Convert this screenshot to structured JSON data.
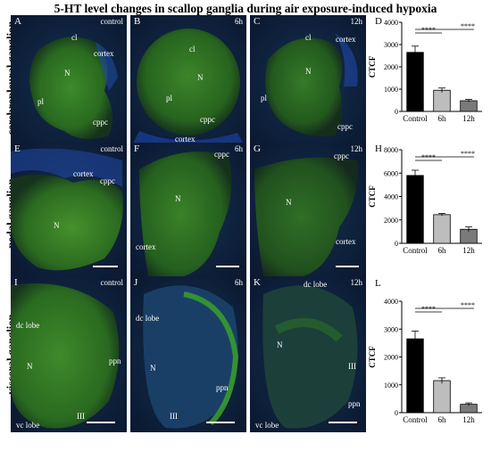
{
  "title": "5-HT level changes in scallop ganglia during air exposure-induced hypoxia",
  "row_labels": [
    "cerebropleural ganglion",
    "pedal ganglion",
    "visceral ganglion"
  ],
  "panels": [
    {
      "letter": "A",
      "time": "control",
      "labels": [
        "cl",
        "N",
        "pl",
        "cppc",
        "cortex"
      ]
    },
    {
      "letter": "B",
      "time": "6h",
      "labels": [
        "cl",
        "N",
        "pl",
        "cppc",
        "cortex"
      ]
    },
    {
      "letter": "C",
      "time": "12h",
      "labels": [
        "cl",
        "N",
        "pl",
        "cortex",
        "cppc"
      ]
    },
    {
      "letter": "E",
      "time": "control",
      "labels": [
        "cortex",
        "cppc",
        "N"
      ]
    },
    {
      "letter": "F",
      "time": "6h",
      "labels": [
        "cppc",
        "N",
        "cortex"
      ]
    },
    {
      "letter": "G",
      "time": "12h",
      "labels": [
        "cppc",
        "N",
        "cortex"
      ]
    },
    {
      "letter": "I",
      "time": "control",
      "labels": [
        "dc lobe",
        "N",
        "ppn",
        "III",
        "vc lobe"
      ]
    },
    {
      "letter": "J",
      "time": "6h",
      "labels": [
        "dc lobe",
        "N",
        "ppn",
        "III"
      ]
    },
    {
      "letter": "K",
      "time": "12h",
      "labels": [
        "dc lobe",
        "N",
        "III",
        "ppn",
        "vc lobe"
      ]
    }
  ],
  "chart_data": [
    {
      "letter": "D",
      "type": "bar",
      "categories": [
        "Control",
        "6h",
        "12h"
      ],
      "values": [
        2650,
        950,
        480
      ],
      "errors": [
        280,
        100,
        60
      ],
      "ylabel": "CTCF",
      "ylim": [
        0,
        4000
      ],
      "yticks": [
        0,
        1000,
        2000,
        3000,
        4000
      ],
      "significance": [
        "****",
        "****"
      ],
      "bar_colors": [
        "#000000",
        "#bdbdbd",
        "#7a7a7a"
      ]
    },
    {
      "letter": "H",
      "type": "bar",
      "categories": [
        "Control",
        "6h",
        "12h"
      ],
      "values": [
        5800,
        2450,
        1200
      ],
      "errors": [
        450,
        100,
        200
      ],
      "ylabel": "CTCF",
      "ylim": [
        0,
        8000
      ],
      "yticks": [
        0,
        2000,
        4000,
        6000,
        8000
      ],
      "significance": [
        "****",
        "****"
      ],
      "bar_colors": [
        "#000000",
        "#bdbdbd",
        "#7a7a7a"
      ]
    },
    {
      "letter": "L",
      "type": "bar",
      "categories": [
        "Control",
        "6h",
        "12h"
      ],
      "values": [
        2650,
        1150,
        300
      ],
      "errors": [
        280,
        100,
        50
      ],
      "ylabel": "CTCF",
      "ylim": [
        0,
        4000
      ],
      "yticks": [
        0,
        1000,
        2000,
        3000,
        4000
      ],
      "significance": [
        "****",
        "****"
      ],
      "bar_colors": [
        "#000000",
        "#bdbdbd",
        "#7a7a7a"
      ]
    }
  ]
}
